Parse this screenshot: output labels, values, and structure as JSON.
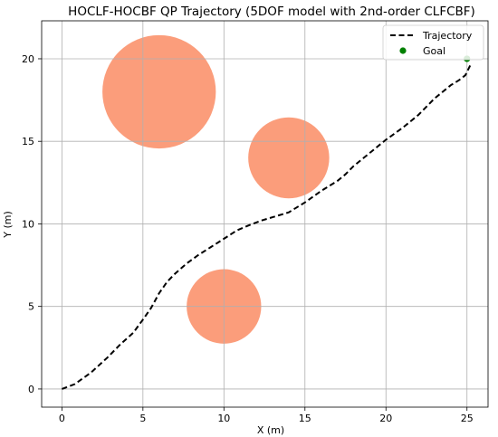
{
  "chart_data": {
    "type": "line",
    "title": "HOCLF-HOCBF QP Trajectory (5DOF model with 2nd-order CLFCBF)",
    "xlabel": "X (m)",
    "ylabel": "Y (m)",
    "xlim": [
      -1.25,
      26.3
    ],
    "ylim": [
      -1.1,
      22.3
    ],
    "xticks": [
      0,
      5,
      10,
      15,
      20,
      25
    ],
    "yticks": [
      0,
      5,
      10,
      15,
      20
    ],
    "grid": true,
    "legend_position": "top-right",
    "legend": [
      {
        "label": "Trajectory",
        "kind": "dashed-line",
        "color": "#000000"
      },
      {
        "label": "Goal",
        "kind": "marker",
        "color": "#008000"
      }
    ],
    "series": [
      {
        "name": "Trajectory",
        "style": "dashed",
        "color": "#000000",
        "x": [
          0,
          0.8,
          1.8,
          2.8,
          3.6,
          4.4,
          5.0,
          5.5,
          6.0,
          6.5,
          7.0,
          7.7,
          8.4,
          9.2,
          10.0,
          10.8,
          11.5,
          12.3,
          13.0,
          14.0,
          15.0,
          16.0,
          17.0,
          17.5,
          18.0,
          19.0,
          20.0,
          21.0,
          22.0,
          22.5,
          23.0,
          23.5,
          24.0,
          24.5,
          24.9,
          25.2
        ],
        "y": [
          0,
          0.3,
          1.0,
          1.9,
          2.7,
          3.4,
          4.2,
          4.9,
          5.8,
          6.5,
          7.0,
          7.6,
          8.1,
          8.6,
          9.1,
          9.6,
          9.9,
          10.2,
          10.4,
          10.7,
          11.3,
          12.0,
          12.6,
          13.0,
          13.5,
          14.3,
          15.1,
          15.8,
          16.6,
          17.1,
          17.6,
          18.0,
          18.4,
          18.7,
          19.0,
          19.6
        ]
      }
    ],
    "goal": {
      "name": "Goal",
      "x": 25.0,
      "y": 20.0,
      "color": "#008000"
    },
    "obstacles": [
      {
        "x": 6.0,
        "y": 18.0,
        "r": 3.5,
        "color": "#fa8c64"
      },
      {
        "x": 14.0,
        "y": 14.0,
        "r": 2.5,
        "color": "#fa8c64"
      },
      {
        "x": 10.0,
        "y": 5.0,
        "r": 2.3,
        "color": "#fa8c64"
      }
    ]
  }
}
